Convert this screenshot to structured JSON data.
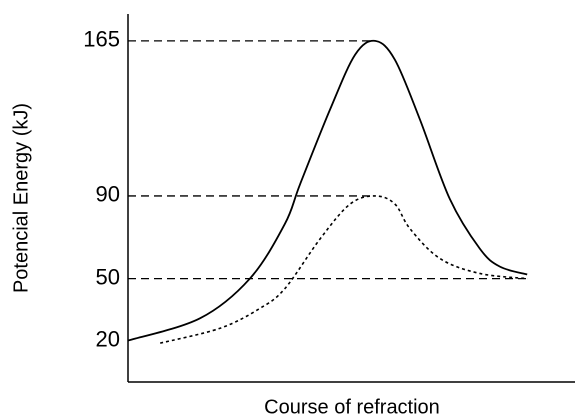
{
  "chart_data": {
    "type": "line",
    "y_label": "Potencial Energy (kJ)",
    "x_label": "Course of refraction",
    "ylim": [
      0,
      178
    ],
    "yticks": [
      20,
      50,
      90,
      165
    ],
    "xlim": [
      0,
      100
    ],
    "series": [
      {
        "color": "#000000",
        "style": "solid",
        "x": [
          0,
          16.1,
          27.3,
          35.1,
          38.5,
          45.2,
          50.8,
          55.3,
          59.7,
          65.3,
          72.0,
          78.7,
          83.2,
          89.3
        ],
        "values": [
          20,
          30.8,
          50.1,
          76.5,
          95.7,
          131.8,
          158.3,
          165,
          155.9,
          127.0,
          88.5,
          64.5,
          55.8,
          52.0
        ]
      },
      {
        "color": "#000000",
        "style": "dotted",
        "x": [
          7.2,
          20.6,
          29.5,
          35.1,
          43.0,
          49.7,
          55.3,
          59.7,
          63.1,
          69.8,
          78.7,
          89.3
        ],
        "values": [
          18.8,
          26.0,
          35.6,
          45.2,
          69.3,
          86.1,
          90,
          86.1,
          74.1,
          59.7,
          52.5,
          50
        ]
      }
    ]
  }
}
